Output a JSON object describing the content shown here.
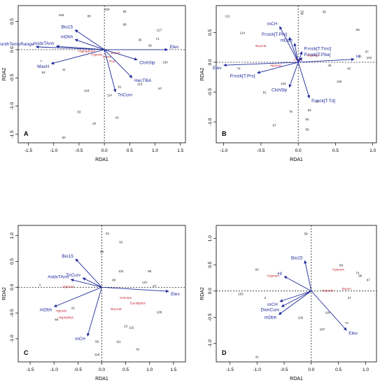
{
  "colors": {
    "arrow": "#1f2a9a",
    "species": "#c0202a",
    "site": "#222222",
    "axis": "#000000"
  },
  "chart_data": [
    {
      "type": "scatter",
      "panel_letter": "A",
      "xlabel": "RDA1",
      "ylabel": "RDA2",
      "xlim": [
        -1.7,
        1.6
      ],
      "ylim": [
        -1.65,
        0.78
      ],
      "xticks": [
        -1.5,
        -1.0,
        -0.5,
        0.0,
        0.5,
        1.0,
        1.5
      ],
      "yticks": [
        -1.5,
        -1.0,
        -0.5,
        0.0,
        0.5
      ],
      "arrows": [
        {
          "label": "Bio15",
          "x": -0.58,
          "y": 0.35
        },
        {
          "label": "mDbh",
          "x": -0.58,
          "y": 0.18
        },
        {
          "label": "MonthTempRange",
          "x": -1.35,
          "y": 0.05
        },
        {
          "label": "AridxTAnn",
          "x": -0.95,
          "y": 0.06
        },
        {
          "label": "MaxH",
          "x": -1.05,
          "y": -0.25
        },
        {
          "label": "Elev",
          "x": 1.25,
          "y": 0.0
        },
        {
          "label": "ClshSlp",
          "x": 0.65,
          "y": -0.18
        },
        {
          "label": "HecTBA",
          "x": 0.55,
          "y": -0.5
        },
        {
          "label": "TriCurv",
          "x": 0.22,
          "y": -0.75
        }
      ],
      "species": [
        {
          "label": "Fagropyrum",
          "x": -0.35,
          "y": -0.02
        },
        {
          "label": "Hypoxis",
          "x": -0.15,
          "y": -0.08
        },
        {
          "label": "Bryum",
          "x": 0.22,
          "y": -0.05
        },
        {
          "label": "Carex",
          "x": 0.05,
          "y": -0.12
        },
        {
          "label": "Poa",
          "x": 0.15,
          "y": -0.2
        }
      ],
      "sites": [
        {
          "label": "165",
          "x": -0.85,
          "y": 0.62
        },
        {
          "label": "86",
          "x": -0.3,
          "y": 0.6
        },
        {
          "label": "100",
          "x": 0.05,
          "y": 0.72
        },
        {
          "label": "55",
          "x": 0.4,
          "y": 0.68
        },
        {
          "label": "88",
          "x": 0.4,
          "y": 0.45
        },
        {
          "label": "127",
          "x": 1.08,
          "y": 0.35
        },
        {
          "label": "36",
          "x": 0.7,
          "y": 0.18
        },
        {
          "label": "71",
          "x": 1.05,
          "y": 0.2
        },
        {
          "label": "49",
          "x": 0.9,
          "y": 0.08
        },
        {
          "label": "7",
          "x": -1.25,
          "y": -0.2
        },
        {
          "label": "92",
          "x": -1.2,
          "y": -0.4
        },
        {
          "label": "11",
          "x": -0.8,
          "y": -0.35
        },
        {
          "label": "100",
          "x": 1.2,
          "y": -0.22
        },
        {
          "label": "91",
          "x": 0.3,
          "y": -0.65
        },
        {
          "label": "118",
          "x": -0.35,
          "y": -0.72
        },
        {
          "label": "114",
          "x": 0.1,
          "y": -0.8
        },
        {
          "label": "87",
          "x": 1.1,
          "y": -0.68
        },
        {
          "label": "119",
          "x": 0.7,
          "y": -0.6
        },
        {
          "label": "83",
          "x": -0.5,
          "y": -1.1
        },
        {
          "label": "20",
          "x": -0.2,
          "y": -1.3
        },
        {
          "label": "42",
          "x": 0.25,
          "y": -1.2
        },
        {
          "label": "50",
          "x": -0.8,
          "y": -1.55
        }
      ]
    },
    {
      "type": "scatter",
      "panel_letter": "B",
      "xlabel": "RDA1",
      "ylabel": "RDA2",
      "xlim": [
        -1.1,
        1.05
      ],
      "ylim": [
        -1.35,
        0.95
      ],
      "xticks": [
        -1.0,
        -0.5,
        0.0,
        0.5,
        1.0
      ],
      "yticks": [
        -1.0,
        -0.5,
        0.0,
        0.5
      ],
      "arrows": [
        {
          "label": "mCH",
          "x": -0.25,
          "y": 0.6
        },
        {
          "label": "P.rock[T.Pre]",
          "x": -0.12,
          "y": 0.42
        },
        {
          "label": "mDbh",
          "x": -0.05,
          "y": 0.32
        },
        {
          "label": "P.rock[T.Tmc]",
          "x": 0.05,
          "y": 0.18
        },
        {
          "label": "P.rock[T.Pba]",
          "x": 0.05,
          "y": 0.08
        },
        {
          "label": "HI",
          "x": 0.75,
          "y": 0.05
        },
        {
          "label": "Elev",
          "x": -1.0,
          "y": -0.05
        },
        {
          "label": "P.rock[T.Prs]",
          "x": -0.55,
          "y": -0.18
        },
        {
          "label": "ClshSlp",
          "x": -0.12,
          "y": -0.42
        },
        {
          "label": "P.rock[T.Td]",
          "x": 0.15,
          "y": -0.6
        }
      ],
      "species": [
        {
          "label": "Bryocat",
          "x": -0.5,
          "y": 0.28
        },
        {
          "label": "Hypnum",
          "x": -0.3,
          "y": -0.05
        },
        {
          "label": "Carex",
          "x": 0.0,
          "y": 0.05
        },
        {
          "label": "Hypnum",
          "x": 0.2,
          "y": 0.12
        }
      ],
      "sites": [
        {
          "label": "111",
          "x": -0.95,
          "y": 0.78
        },
        {
          "label": "11",
          "x": 0.05,
          "y": 0.82
        },
        {
          "label": "73",
          "x": 0.05,
          "y": 0.85
        },
        {
          "label": "56",
          "x": 0.35,
          "y": 0.85
        },
        {
          "label": "114",
          "x": -0.75,
          "y": 0.5
        },
        {
          "label": "56",
          "x": 0.8,
          "y": 0.55
        },
        {
          "label": "87",
          "x": 0.92,
          "y": 0.18
        },
        {
          "label": "3",
          "x": 0.82,
          "y": 0.1
        },
        {
          "label": "103",
          "x": 0.95,
          "y": 0.08
        },
        {
          "label": "45",
          "x": 0.68,
          "y": -0.1
        },
        {
          "label": "74",
          "x": -0.8,
          "y": -0.1
        },
        {
          "label": "106",
          "x": 0.55,
          "y": -0.32
        },
        {
          "label": "45",
          "x": 0.42,
          "y": -0.05
        },
        {
          "label": "81",
          "x": -0.45,
          "y": -0.5
        },
        {
          "label": "102",
          "x": -0.2,
          "y": -0.35
        },
        {
          "label": "95",
          "x": 0.25,
          "y": -0.65
        },
        {
          "label": "76",
          "x": -0.1,
          "y": -0.82
        },
        {
          "label": "83",
          "x": 0.15,
          "y": -0.8
        },
        {
          "label": "94",
          "x": 0.12,
          "y": -0.95
        },
        {
          "label": "67",
          "x": -0.32,
          "y": -1.05
        },
        {
          "label": "90",
          "x": 0.12,
          "y": -1.12
        }
      ]
    },
    {
      "type": "scatter",
      "panel_letter": "C",
      "xlabel": "RDA1",
      "ylabel": "RDA2",
      "xlim": [
        -1.75,
        1.75
      ],
      "ylim": [
        -1.45,
        1.2
      ],
      "xticks": [
        -1.5,
        -1.0,
        -0.5,
        0.0,
        0.5,
        1.0,
        1.5
      ],
      "yticks": [
        -1.0,
        -0.5,
        0.0,
        0.5,
        1.0
      ],
      "arrows": [
        {
          "label": "Bio15",
          "x": -0.55,
          "y": 0.55
        },
        {
          "label": "AridxTAnn",
          "x": -0.65,
          "y": 0.15
        },
        {
          "label": "TriCurv",
          "x": -0.4,
          "y": 0.18
        },
        {
          "label": "Elev",
          "x": 1.4,
          "y": -0.08
        },
        {
          "label": "mDbh",
          "x": -1.0,
          "y": -0.38
        },
        {
          "label": "mCH",
          "x": -0.3,
          "y": -0.95
        }
      ],
      "species": [
        {
          "label": "Hypnum",
          "x": -0.7,
          "y": 0.02
        },
        {
          "label": "Hypoxis",
          "x": -0.85,
          "y": -0.45
        },
        {
          "label": "Hyptophys",
          "x": -0.75,
          "y": -0.58
        },
        {
          "label": "Ochrium",
          "x": 0.5,
          "y": -0.2
        },
        {
          "label": "Eucalyptus",
          "x": 0.75,
          "y": -0.3
        },
        {
          "label": "Bryocat",
          "x": 0.3,
          "y": -0.42
        }
      ],
      "sites": [
        {
          "label": "61",
          "x": 0.12,
          "y": 1.05
        },
        {
          "label": "93",
          "x": 0.4,
          "y": 0.88
        },
        {
          "label": "98",
          "x": 0.0,
          "y": 0.7
        },
        {
          "label": "102",
          "x": 0.4,
          "y": 0.32
        },
        {
          "label": "88",
          "x": 1.0,
          "y": 0.32
        },
        {
          "label": "107",
          "x": 0.9,
          "y": 0.1
        },
        {
          "label": "98",
          "x": 0.25,
          "y": 0.15
        },
        {
          "label": "27",
          "x": 1.1,
          "y": 0.03
        },
        {
          "label": "3",
          "x": -1.3,
          "y": 0.05
        },
        {
          "label": "91",
          "x": -0.6,
          "y": -0.4
        },
        {
          "label": "68",
          "x": -0.95,
          "y": -0.62
        },
        {
          "label": "108",
          "x": 1.2,
          "y": -0.48
        },
        {
          "label": "23",
          "x": 0.5,
          "y": -0.75
        },
        {
          "label": "115",
          "x": 0.62,
          "y": -0.78
        },
        {
          "label": "56",
          "x": -0.1,
          "y": -1.05
        },
        {
          "label": "111",
          "x": 0.35,
          "y": -1.05
        },
        {
          "label": "42",
          "x": 0.75,
          "y": -1.2
        },
        {
          "label": "118",
          "x": -0.1,
          "y": -1.3
        }
      ]
    },
    {
      "type": "scatter",
      "panel_letter": "D",
      "xlabel": "RDA1",
      "ylabel": "RDA2",
      "xlim": [
        -1.75,
        1.2
      ],
      "ylim": [
        -1.35,
        1.25
      ],
      "xticks": [
        -1.5,
        -1.0,
        -0.5,
        0.0,
        0.5,
        1.0
      ],
      "yticks": [
        -1.0,
        -0.5,
        0.0,
        0.5,
        1.0
      ],
      "arrows": [
        {
          "label": "Bio15",
          "x": -0.12,
          "y": 0.58
        },
        {
          "label": "HI",
          "x": -0.5,
          "y": 0.28
        },
        {
          "label": "Elev",
          "x": 0.65,
          "y": -0.75
        },
        {
          "label": "mCH",
          "x": -0.58,
          "y": -0.2
        },
        {
          "label": "DwnCurv",
          "x": -0.55,
          "y": -0.3
        },
        {
          "label": "mDbh",
          "x": -0.6,
          "y": -0.45
        }
      ],
      "species": [
        {
          "label": "Hypnum",
          "x": 0.5,
          "y": 0.42
        },
        {
          "label": "Hypnum",
          "x": -0.7,
          "y": 0.3
        },
        {
          "label": "Bryum",
          "x": 0.65,
          "y": 0.05
        },
        {
          "label": "Hypoxis",
          "x": 0.3,
          "y": 0.02
        }
      ],
      "sites": [
        {
          "label": "58",
          "x": -0.1,
          "y": 1.1
        },
        {
          "label": "92",
          "x": -1.0,
          "y": 0.42
        },
        {
          "label": "89",
          "x": 0.55,
          "y": 0.5
        },
        {
          "label": "74",
          "x": 0.85,
          "y": 0.35
        },
        {
          "label": "67",
          "x": 1.05,
          "y": 0.22
        },
        {
          "label": "96",
          "x": 0.9,
          "y": 0.3
        },
        {
          "label": "183",
          "x": -1.3,
          "y": -0.05
        },
        {
          "label": "3",
          "x": -0.85,
          "y": -0.12
        },
        {
          "label": "27",
          "x": 0.7,
          "y": -0.12
        },
        {
          "label": "100",
          "x": -0.2,
          "y": -0.5
        },
        {
          "label": "115",
          "x": 0.3,
          "y": -0.4
        },
        {
          "label": "107",
          "x": 0.2,
          "y": -0.72
        },
        {
          "label": "74",
          "x": 0.65,
          "y": -0.6
        },
        {
          "label": "41",
          "x": -1.0,
          "y": -1.25
        }
      ]
    }
  ]
}
